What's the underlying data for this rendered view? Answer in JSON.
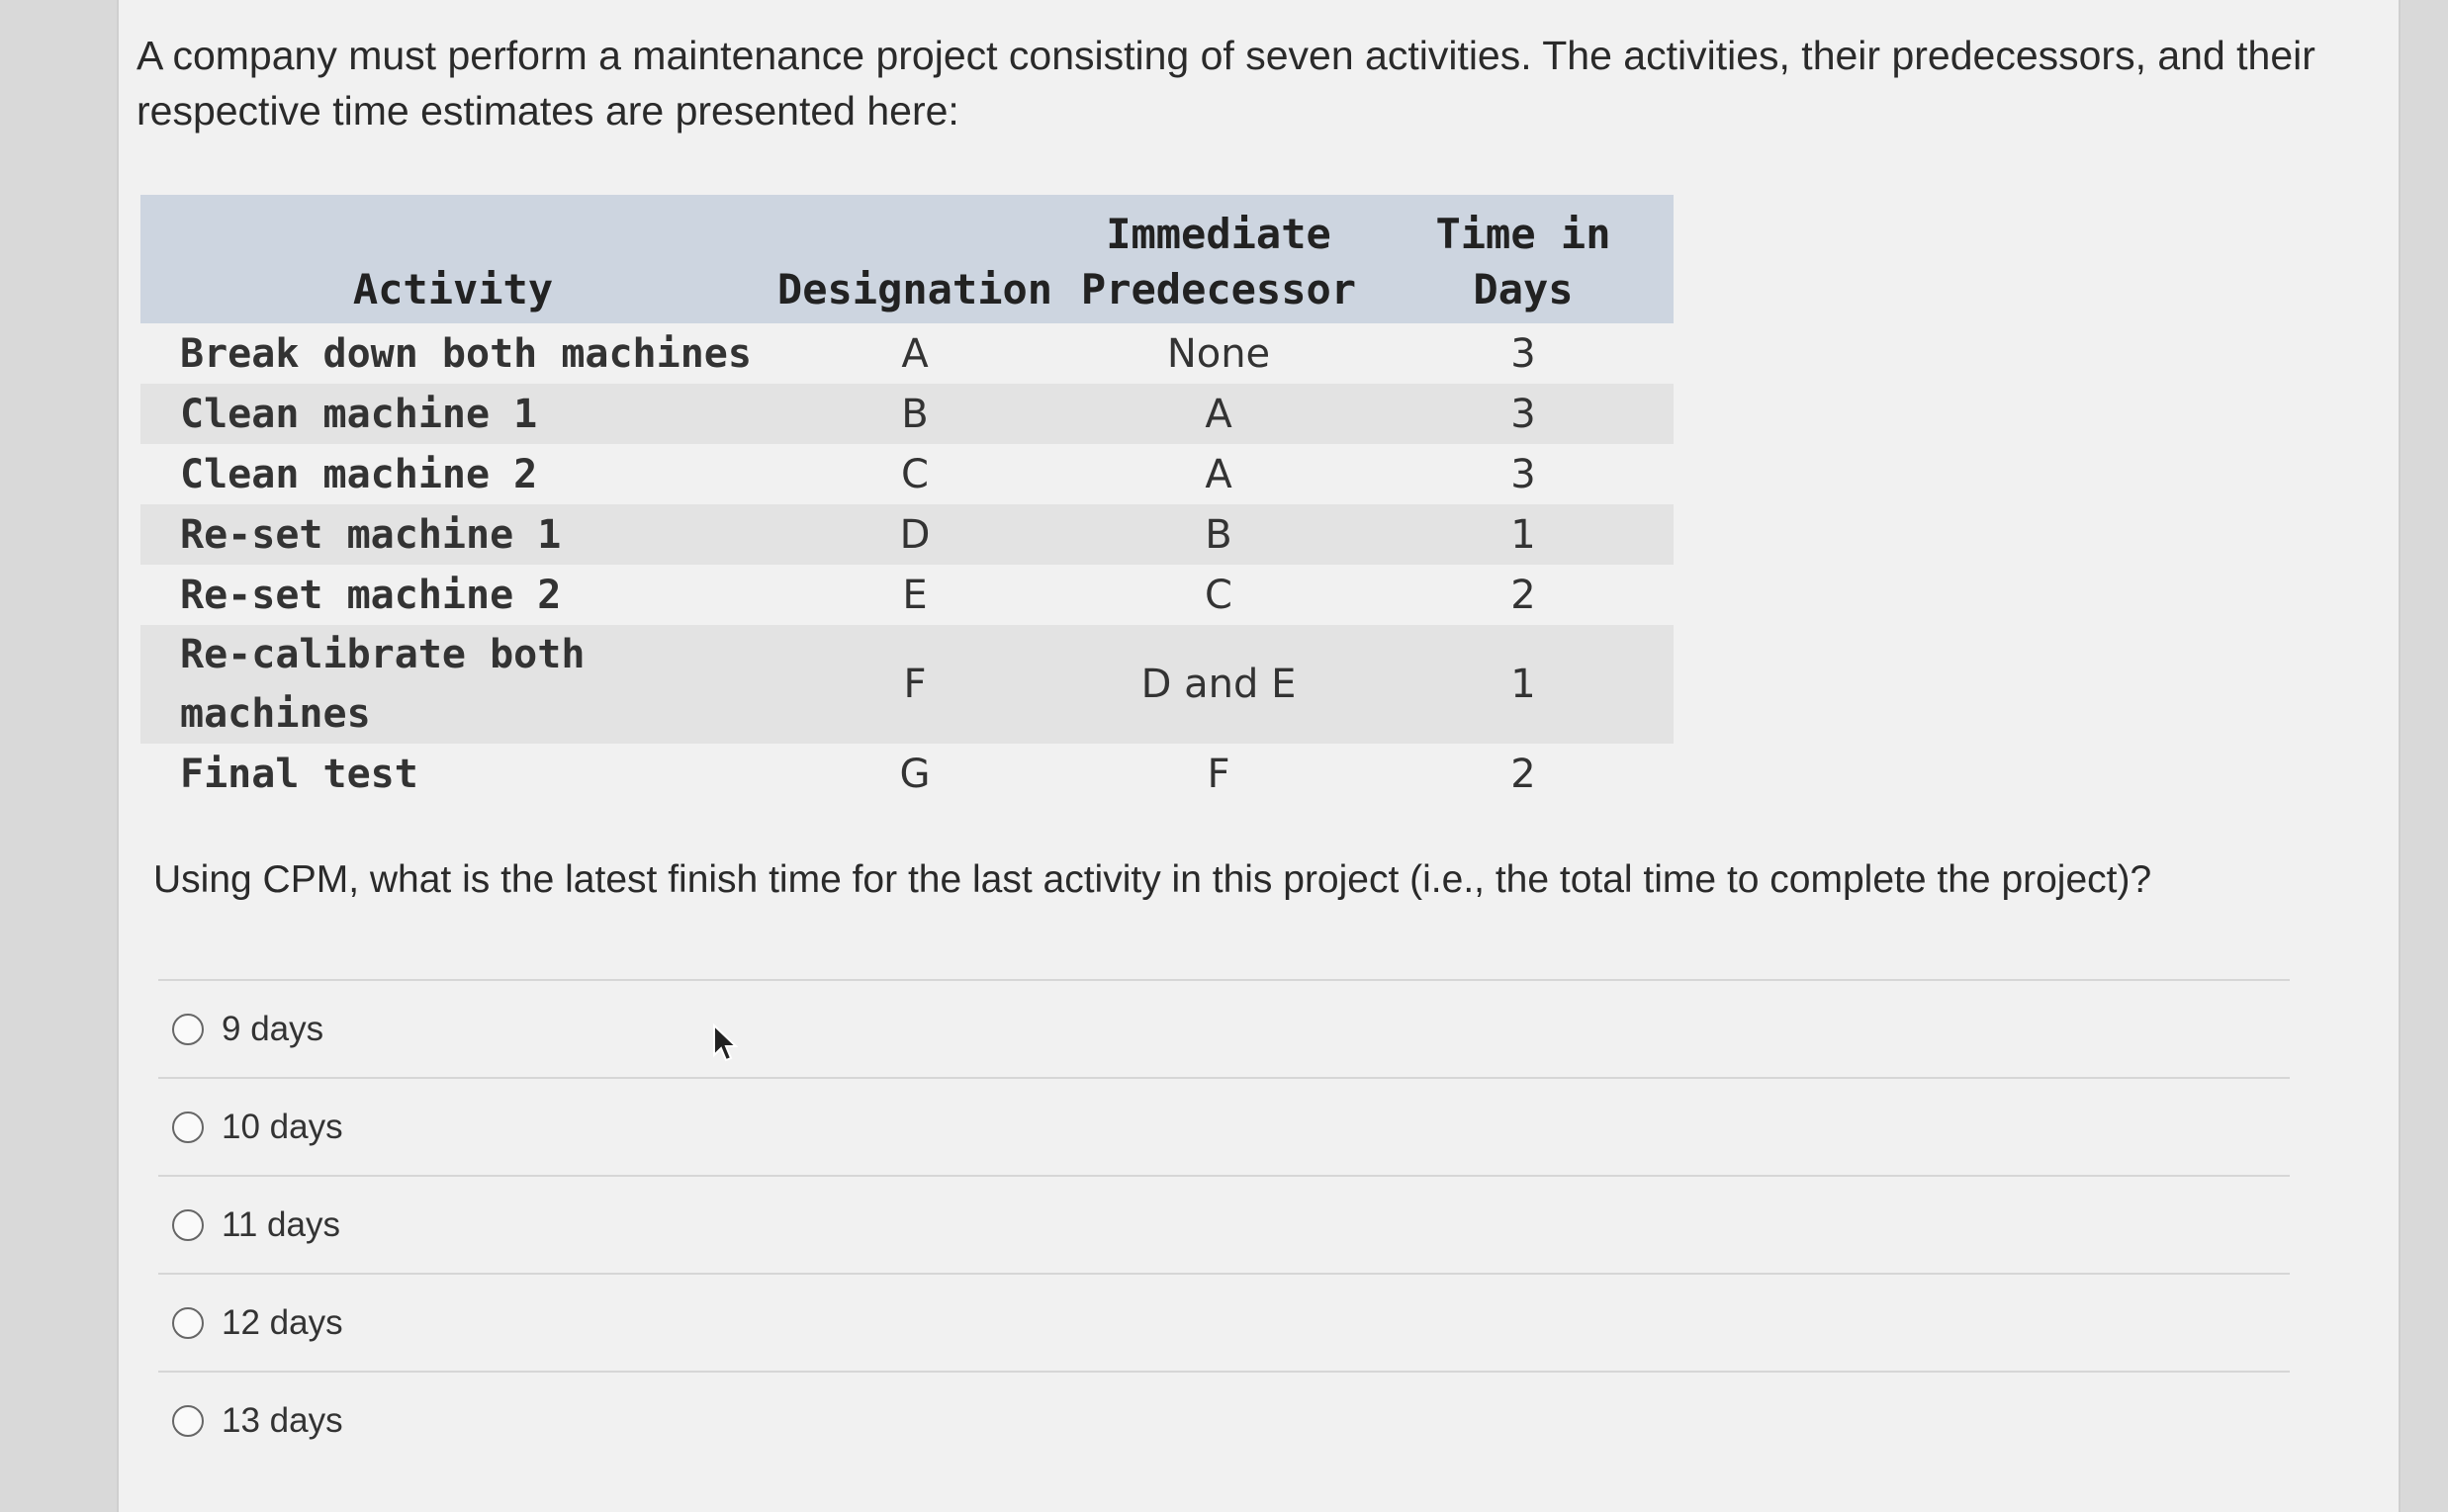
{
  "intro": "A company must perform a maintenance project consisting of seven activities. The activities, their predecessors, and their respective time estimates are presented here:",
  "table": {
    "headers": [
      "Activity",
      "Designation",
      "Immediate Predecessor",
      "Time in Days"
    ],
    "rows": [
      [
        "Break down both machines",
        "A",
        "None",
        "3"
      ],
      [
        "Clean machine 1",
        "B",
        "A",
        "3"
      ],
      [
        "Clean machine 2",
        "C",
        "A",
        "3"
      ],
      [
        "Re-set machine 1",
        "D",
        "B",
        "1"
      ],
      [
        "Re-set machine 2",
        "E",
        "C",
        "2"
      ],
      [
        "Re-calibrate both machines",
        "F",
        "D and E",
        "1"
      ],
      [
        "Final test",
        "G",
        "F",
        "2"
      ]
    ]
  },
  "question": "Using CPM, what is the latest finish time for the last activity in this project (i.e., the total time to complete the project)?",
  "options": [
    "9 days",
    "10 days",
    "11 days",
    "12 days",
    "13 days"
  ]
}
